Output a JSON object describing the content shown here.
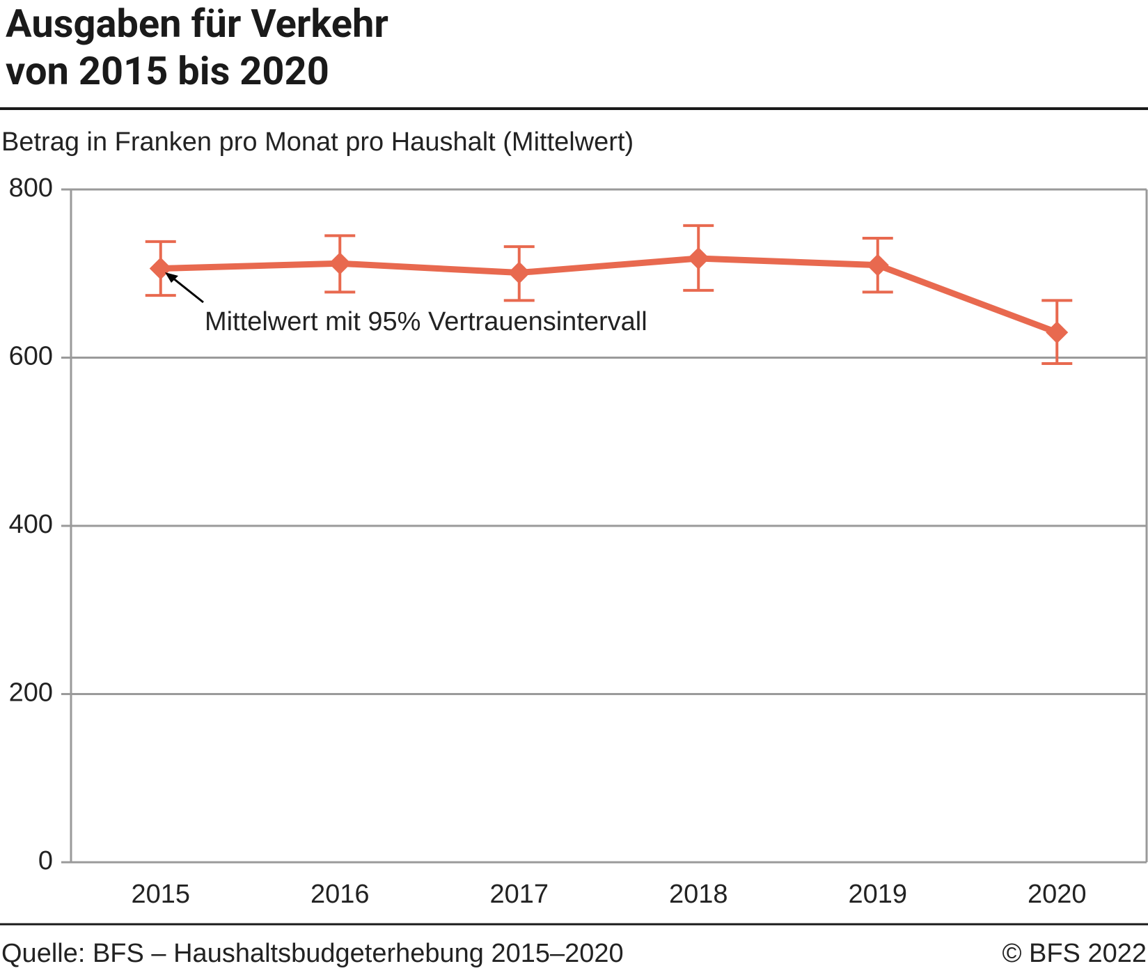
{
  "chart_data": {
    "type": "line",
    "title": "Ausgaben für Verkehr\nvon 2015 bis 2020",
    "subtitle": "Betrag in Franken pro Monat pro Haushalt (Mittelwert)",
    "annotation": "Mittelwert mit 95% Vertrauensintervall",
    "source": "Quelle: BFS – Haushaltsbudgeterhebung 2015–2020",
    "copyright": "© BFS 2022",
    "categories": [
      "2015",
      "2016",
      "2017",
      "2018",
      "2019",
      "2020"
    ],
    "series": [
      {
        "name": "Mittelwert",
        "color": "#e8694f",
        "values": [
          706,
          712,
          701,
          718,
          710,
          630
        ],
        "ci_lower": [
          674,
          678,
          668,
          680,
          678,
          593
        ],
        "ci_upper": [
          738,
          745,
          732,
          757,
          742,
          668
        ]
      }
    ],
    "ylim": [
      0,
      800
    ],
    "yticks": [
      0,
      200,
      400,
      600,
      800
    ],
    "grid": true
  }
}
